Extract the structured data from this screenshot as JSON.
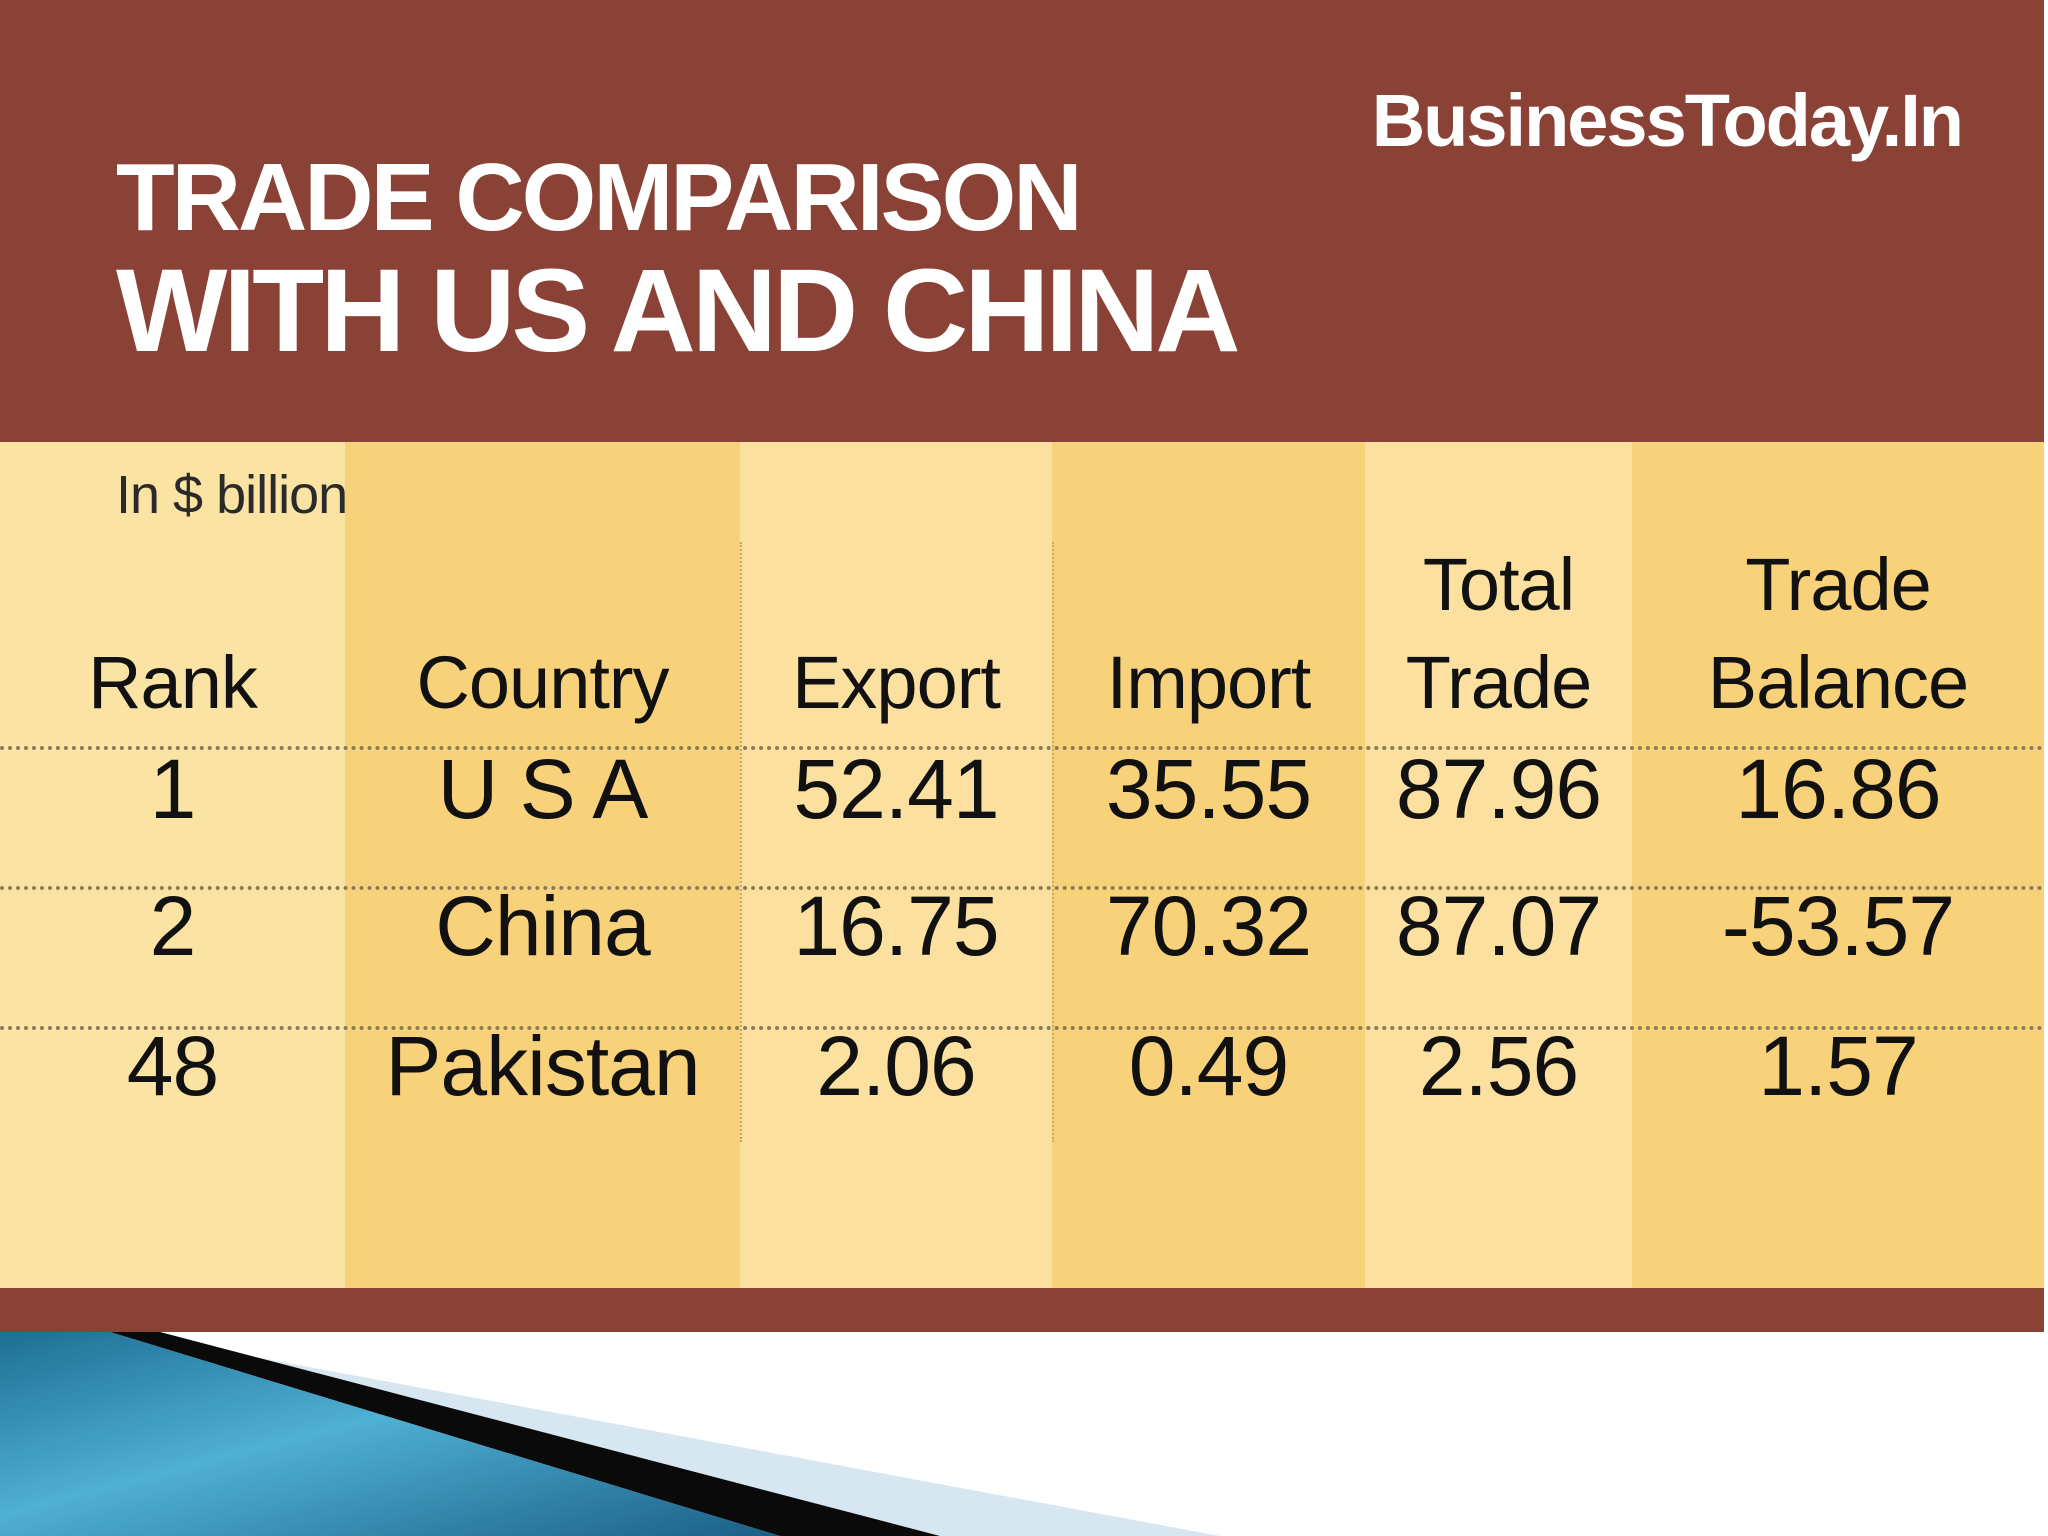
{
  "header": {
    "brand": "BusinessToday.In",
    "title_line1": "TRADE COMPARISON",
    "title_line2": "WITH US AND CHINA"
  },
  "colors": {
    "header_bg": "#8a4236",
    "table_bg": "#f8d27a",
    "text": "#111111"
  },
  "chart_data": {
    "type": "table",
    "title": "TRADE COMPARISON WITH US AND CHINA",
    "unit_label": "In $ billion",
    "columns": [
      {
        "key": "rank",
        "label_lines": [
          "",
          "Rank"
        ]
      },
      {
        "key": "country",
        "label_lines": [
          "",
          "Country"
        ]
      },
      {
        "key": "export",
        "label_lines": [
          "",
          "Export"
        ]
      },
      {
        "key": "import",
        "label_lines": [
          "",
          "Import"
        ]
      },
      {
        "key": "total_trade",
        "label_lines": [
          "Total",
          "Trade"
        ]
      },
      {
        "key": "trade_balance",
        "label_lines": [
          "Trade",
          "Balance"
        ]
      }
    ],
    "rows": [
      {
        "rank": "1",
        "country": "U S A",
        "export": "52.41",
        "import": "35.55",
        "total_trade": "87.96",
        "trade_balance": "16.86"
      },
      {
        "rank": "2",
        "country": "China",
        "export": "16.75",
        "import": "70.32",
        "total_trade": "87.07",
        "trade_balance": "-53.57"
      },
      {
        "rank": "48",
        "country": "Pakistan",
        "export": "2.06",
        "import": "0.49",
        "total_trade": "2.56",
        "trade_balance": "1.57"
      }
    ]
  }
}
